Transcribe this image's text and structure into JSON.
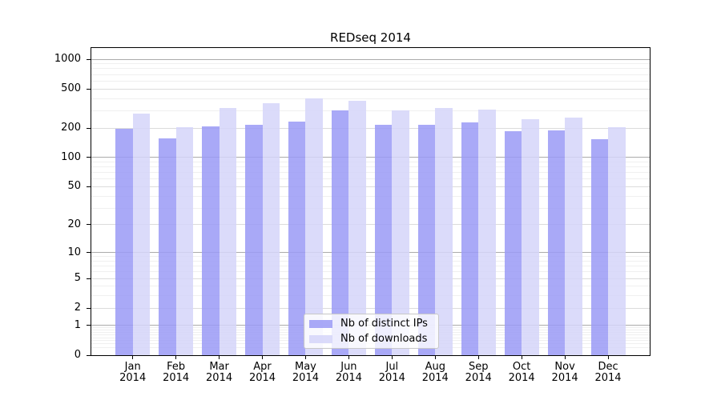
{
  "chart_data": {
    "type": "bar",
    "title": "REDseq 2014",
    "categories": [
      "Jan",
      "Feb",
      "Mar",
      "Apr",
      "May",
      "Jun",
      "Jul",
      "Aug",
      "Sep",
      "Oct",
      "Nov",
      "Dec"
    ],
    "x_year": "2014",
    "series": [
      {
        "name": "Nb of distinct IPs",
        "color": "#9a9af6",
        "values": [
          198,
          158,
          209,
          216,
          231,
          300,
          215,
          214,
          230,
          186,
          188,
          153
        ]
      },
      {
        "name": "Nb of downloads",
        "color": "#d5d5f9",
        "values": [
          278,
          205,
          320,
          357,
          398,
          375,
          305,
          322,
          310,
          247,
          256,
          205
        ]
      }
    ],
    "y_axis": {
      "scale": "log(1+x)",
      "tick_labels": [
        1000,
        500,
        200,
        100,
        50,
        20,
        10,
        5,
        2,
        1,
        0
      ],
      "range": [
        0,
        1000
      ]
    },
    "legend": {
      "position": "inside bottom-center"
    },
    "grid": "on"
  }
}
